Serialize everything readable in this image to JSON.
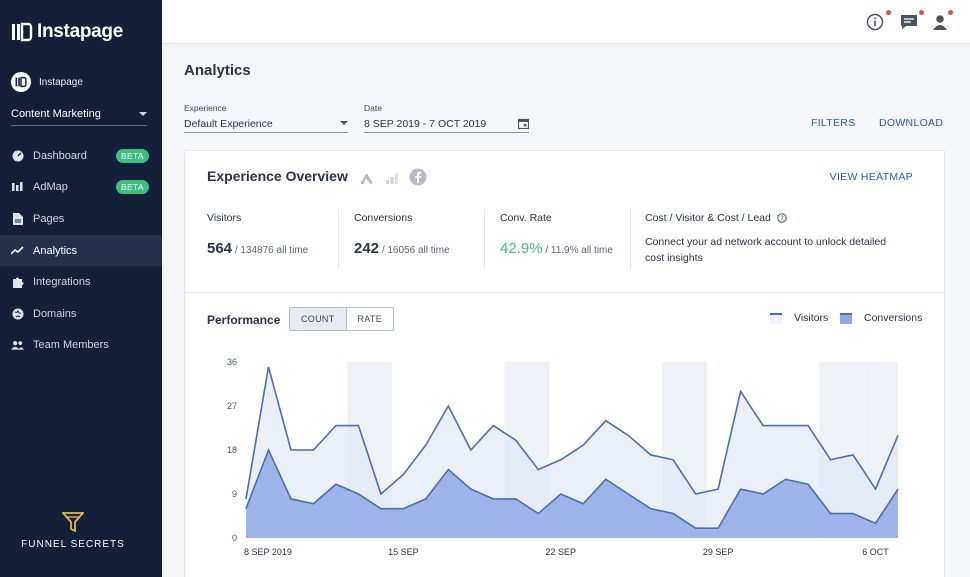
{
  "brand": {
    "name": "Instapage"
  },
  "workspace": {
    "name": "Instapage"
  },
  "project": {
    "name": "Content Marketing"
  },
  "nav": {
    "items": [
      {
        "label": "Dashboard",
        "icon": "dashboard-icon",
        "badge": "BETA"
      },
      {
        "label": "AdMap",
        "icon": "admap-icon",
        "badge": "BETA"
      },
      {
        "label": "Pages",
        "icon": "page-icon",
        "badge": ""
      },
      {
        "label": "Analytics",
        "icon": "analytics-icon",
        "badge": ""
      },
      {
        "label": "Integrations",
        "icon": "puzzle-icon",
        "badge": ""
      },
      {
        "label": "Domains",
        "icon": "globe-icon",
        "badge": ""
      },
      {
        "label": "Team Members",
        "icon": "team-icon",
        "badge": ""
      }
    ],
    "active_index": 3
  },
  "watermark": {
    "text": "FUNNEL SECRETS"
  },
  "page": {
    "title": "Analytics"
  },
  "filters": {
    "experience_label": "Experience",
    "experience_value": "Default Experience",
    "date_label": "Date",
    "date_value": "8 SEP 2019 - 7 OCT 2019",
    "filters_button": "FILTERS",
    "download_button": "DOWNLOAD"
  },
  "overview": {
    "title": "Experience Overview",
    "view_heatmap": "VIEW HEATMAP",
    "visitors": {
      "label": "Visitors",
      "value": "564",
      "total": "/ 134876 all time"
    },
    "conversions": {
      "label": "Conversions",
      "value": "242",
      "total": "/ 16056 all time"
    },
    "conv_rate": {
      "label": "Conv. Rate",
      "value": "42.9%",
      "total": "/ 11.9% all time"
    },
    "cost": {
      "label": "Cost / Visitor & Cost / Lead",
      "message": "Connect your ad network account to unlock detailed cost insights"
    }
  },
  "performance": {
    "title": "Performance",
    "toggle": [
      "COUNT",
      "RATE"
    ],
    "active_toggle": "COUNT"
  },
  "colors": {
    "sidebar": "#14203a",
    "accent": "#2f5aa8",
    "success": "#3fbf7f",
    "visitors_fill": "#e6ecf8",
    "conversions_fill": "#8fa9e6",
    "line": "#4a6fb0"
  },
  "chart_data": {
    "type": "area",
    "series": [
      {
        "name": "Visitors",
        "values": [
          8,
          35,
          18,
          18,
          23,
          23,
          9,
          13,
          19,
          27,
          18,
          23,
          20,
          14,
          16,
          19,
          24,
          21,
          17,
          16,
          9,
          10,
          30,
          23,
          23,
          23,
          16,
          17,
          10,
          21
        ]
      },
      {
        "name": "Conversions",
        "values": [
          6,
          18,
          8,
          7,
          11,
          9,
          6,
          6,
          8,
          14,
          10,
          8,
          8,
          5,
          9,
          7,
          12,
          9,
          6,
          5,
          2,
          2,
          10,
          9,
          12,
          11,
          5,
          5,
          3,
          10
        ]
      }
    ],
    "x_tick_labels": [
      "8 SEP 2019",
      "15 SEP",
      "22 SEP",
      "29 SEP",
      "6 OCT"
    ],
    "y_tick_labels": [
      "0",
      "9",
      "18",
      "27",
      "36"
    ],
    "ylim": [
      0,
      36
    ],
    "weekend_bands": true,
    "legend": "top-right"
  }
}
